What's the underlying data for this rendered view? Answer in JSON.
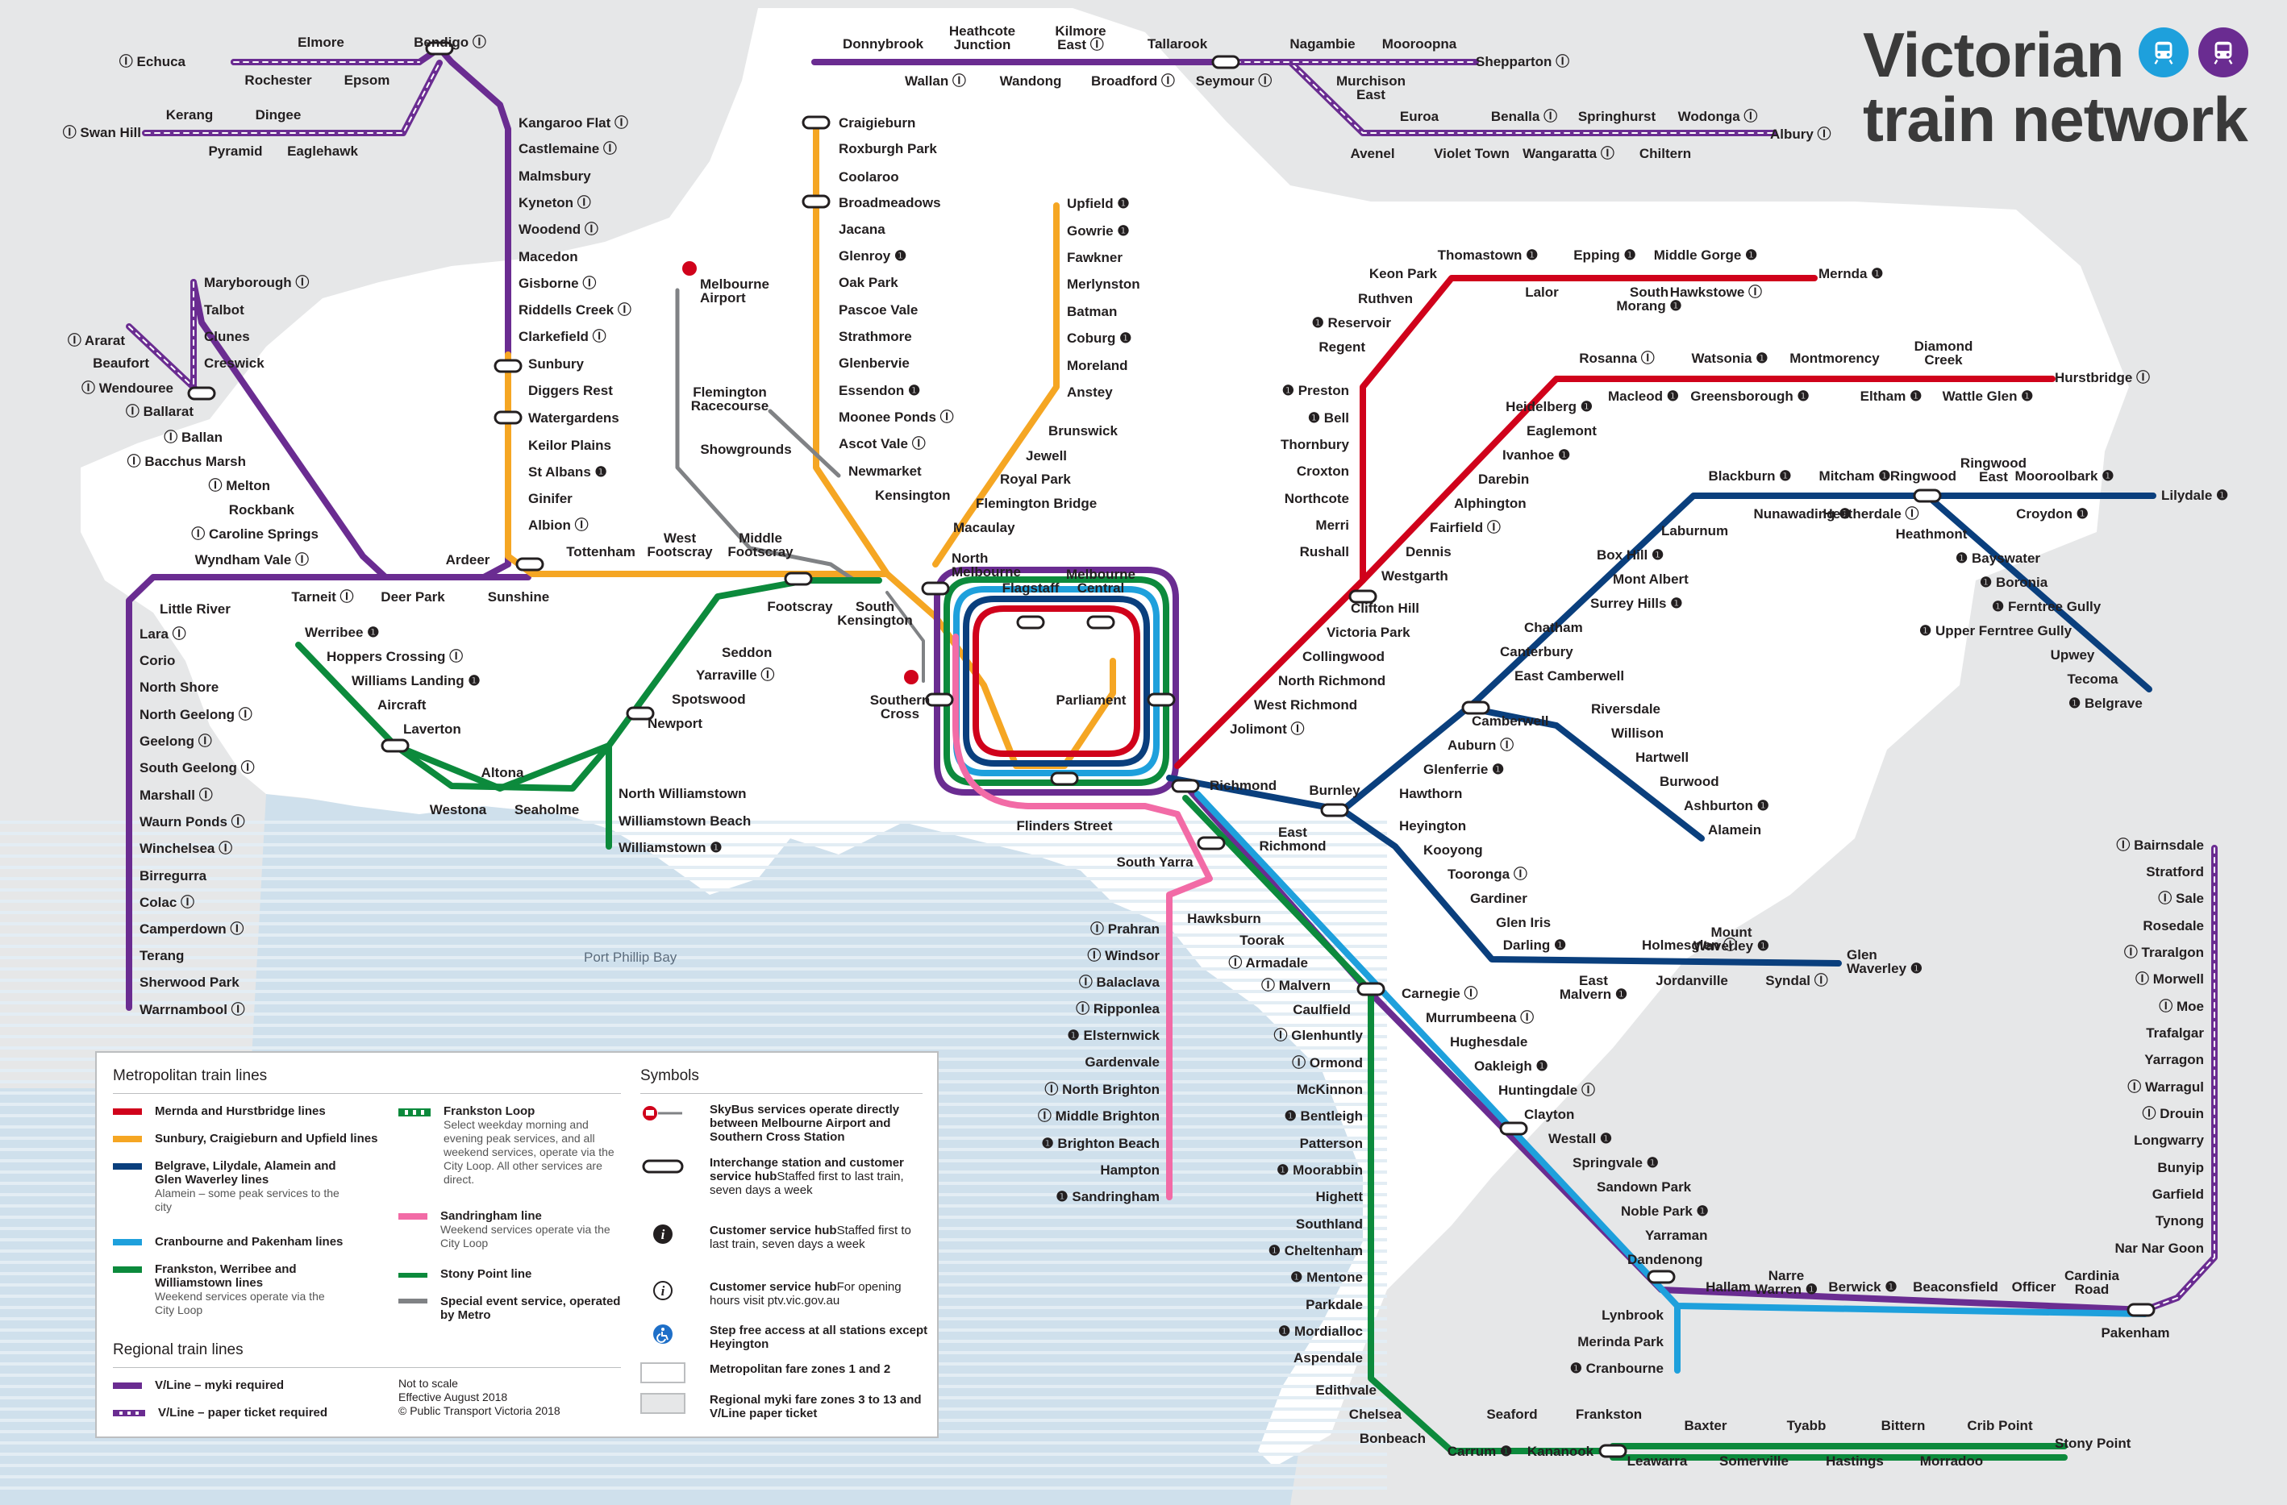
{
  "title": {
    "line1": "Victorian",
    "line2": "train network"
  },
  "title_icons": [
    "metro-train-icon",
    "vline-train-icon"
  ],
  "colors": {
    "red": "#d0021b",
    "yellow": "#f5a623",
    "blue": "#0a3f7d",
    "cyan": "#1ea0dc",
    "green": "#0c8a3c",
    "pink": "#f26ba6",
    "purple": "#6a2c91",
    "grey": "#808285",
    "zone12": "#ffffff",
    "zone3": "#e6e7e8",
    "water": "#cfe0ec"
  },
  "water_label": "Port Phillip Bay",
  "labels": {
    "Echuca": "Ⓘ Echuca",
    "Elmore": "Elmore",
    "Rochester": "Rochester",
    "Epsom": "Epsom",
    "Bendigo": "Bendigo Ⓘ",
    "SwanHill": "Ⓘ Swan Hill",
    "Kerang": "Kerang",
    "Dingee": "Dingee",
    "Pyramid": "Pyramid",
    "Eaglehawk": "Eaglehawk",
    "KangarooFlat": "Kangaroo Flat Ⓘ",
    "Castlemaine": "Castlemaine Ⓘ",
    "Malmsbury": "Malmsbury",
    "Kyneton": "Kyneton Ⓘ",
    "Woodend": "Woodend Ⓘ",
    "Macedon": "Macedon",
    "Gisborne": "Gisborne Ⓘ",
    "RiddellsCreek": "Riddells Creek Ⓘ",
    "Clarkefield": "Clarkefield Ⓘ",
    "Sunbury": "Sunbury",
    "DiggersRest": "Diggers Rest",
    "Watergardens": "Watergardens",
    "KeilorPlains": "Keilor Plains",
    "StAlbans": "St Albans ❶",
    "Ginifer": "Ginifer",
    "Albion": "Albion Ⓘ",
    "Maryborough": "Maryborough Ⓘ",
    "Talbot": "Talbot",
    "Clunes": "Clunes",
    "Creswick": "Creswick",
    "Ararat": "Ⓘ Ararat",
    "Beaufort": "Beaufort",
    "Wendouree": "Ⓘ Wendouree",
    "Ballarat": "Ⓘ Ballarat",
    "Ballan": "Ⓘ Ballan",
    "BacchusMarsh": "Ⓘ Bacchus Marsh",
    "Melton": "Ⓘ Melton",
    "Rockbank": "Rockbank",
    "CarolineSprings": "Ⓘ Caroline Springs",
    "WyndhamVale": "Wyndham Vale Ⓘ",
    "Ardeer": "Ardeer",
    "Tarneit": "Tarneit Ⓘ",
    "DeerPark": "Deer Park",
    "Sunshine": "Sunshine",
    "LittleRiver": "Little River",
    "Lara": "Lara Ⓘ",
    "Corio": "Corio",
    "NorthShore": "North Shore",
    "NorthGeelong": "North Geelong Ⓘ",
    "Geelong": "Geelong Ⓘ",
    "SouthGeelong": "South Geelong Ⓘ",
    "Marshall": "Marshall Ⓘ",
    "WaurnPonds": "Waurn Ponds Ⓘ",
    "Winchelsea": "Winchelsea Ⓘ",
    "Birregurra": "Birregurra",
    "Colac": "Colac Ⓘ",
    "Camperdown": "Camperdown Ⓘ",
    "Terang": "Terang",
    "SherwoodPark": "Sherwood Park",
    "Warrnambool": "Warrnambool Ⓘ",
    "Donnybrook": "Donnybrook",
    "HeathcoteJunction": "Heathcote|Junction",
    "KilmoreEast": "Kilmore|East Ⓘ",
    "Tallarook": "Tallarook",
    "Wallan": "Wallan Ⓘ",
    "Wandong": "Wandong",
    "Broadford": "Broadford Ⓘ",
    "Seymour": "Seymour Ⓘ",
    "Nagambie": "Nagambie",
    "Mooroopna": "Mooroopna",
    "Shepparton": "Shepparton Ⓘ",
    "MurchisonEast": "Murchison|East",
    "Euroa": "Euroa",
    "Benalla": "Benalla Ⓘ",
    "Springhurst": "Springhurst",
    "Wodonga": "Wodonga Ⓘ",
    "Albury": "Albury Ⓘ",
    "Avenel": "Avenel",
    "VioletTown": "Violet Town",
    "Wangaratta": "Wangaratta Ⓘ",
    "Chiltern": "Chiltern",
    "Craigieburn": "Craigieburn",
    "RoxburghPark": "Roxburgh Park",
    "Coolaroo": "Coolaroo",
    "Broadmeadows": "Broadmeadows",
    "Jacana": "Jacana",
    "Glenroy": "Glenroy ❶",
    "OakPark": "Oak Park",
    "PascoeVale": "Pascoe Vale",
    "Strathmore": "Strathmore",
    "Glenbervie": "Glenbervie",
    "Essendon": "Essendon ❶",
    "MooneePonds": "Moonee Ponds Ⓘ",
    "AscotVale": "Ascot Vale Ⓘ",
    "Newmarket": "Newmarket",
    "Kensington": "Kensington",
    "MelbourneAirport": "Melbourne|Airport",
    "FlemingtonRacecourse": "Flemington|Racecourse",
    "Showgrounds": "Showgrounds",
    "Upfield": "Upfield ❶",
    "Gowrie": "Gowrie ❶",
    "Fawkner": "Fawkner",
    "Merlynston": "Merlynston",
    "Batman": "Batman",
    "Coburg": "Coburg ❶",
    "Moreland": "Moreland",
    "Anstey": "Anstey",
    "Brunswick": "Brunswick",
    "Jewell": "Jewell",
    "RoyalPark": "Royal Park",
    "FlemingtonBridge": "Flemington Bridge",
    "Macaulay": "Macaulay",
    "NorthMelbourne": "North|Melbourne",
    "Flagstaff": "Flagstaff",
    "MelbourneCentral": "Melbourne|Central",
    "Parliament": "Parliament",
    "SouthernCross": "Southern|Cross",
    "FlindersStreet": "Flinders Street",
    "Tottenham": "Tottenham",
    "WestFootscray": "West|Footscray",
    "MiddleFootscray": "Middle|Footscray",
    "Footscray": "Footscray",
    "SouthKensington": "South|Kensington",
    "Werribee": "Werribee ❶",
    "HoppersCrossing": "Hoppers Crossing Ⓘ",
    "WilliamsLanding": "Williams Landing ❶",
    "Aircraft": "Aircraft",
    "Laverton": "Laverton",
    "Altona": "Altona",
    "Westona": "Westona",
    "Seaholme": "Seaholme",
    "Seddon": "Seddon",
    "Yarraville": "Yarraville Ⓘ",
    "Spotswood": "Spotswood",
    "Newport": "Newport",
    "NorthWilliamstown": "North Williamstown",
    "WilliamstownBeach": "Williamstown Beach",
    "Williamstown": "Williamstown ❶",
    "Thomastown": "Thomastown ❶",
    "Epping": "Epping ❶",
    "MiddleGorge": "Middle Gorge ❶",
    "Mernda": "Mernda ❶",
    "KeonPark": "Keon Park",
    "Ruthven": "Ruthven",
    "Lalor": "Lalor",
    "SouthMorang": "South|Morang ❶",
    "Hawkstowe": "Hawkstowe Ⓘ",
    "Reservoir": "❶ Reservoir",
    "Regent": "Regent",
    "Preston": "❶ Preston",
    "Bell": "❶ Bell",
    "Thornbury": "Thornbury",
    "Croxton": "Croxton",
    "Northcote": "Northcote",
    "Merri": "Merri",
    "Rushall": "Rushall",
    "Rosanna": "Rosanna Ⓘ",
    "Watsonia": "Watsonia ❶",
    "Montmorency": "Montmorency",
    "DiamondCreek": "Diamond|Creek",
    "Hurstbridge": "Hurstbridge Ⓘ",
    "Heidelberg": "Heidelberg ❶",
    "Macleod": "Macleod ❶",
    "Greensborough": "Greensborough ❶",
    "Eltham": "Eltham ❶",
    "WattleGlen": "Wattle Glen ❶",
    "Eaglemont": "Eaglemont",
    "Ivanhoe": "Ivanhoe ❶",
    "Darebin": "Darebin",
    "Alphington": "Alphington",
    "Fairfield": "Fairfield Ⓘ",
    "Dennis": "Dennis",
    "Westgarth": "Westgarth",
    "CliftonHill": "Clifton Hill",
    "VictoriaPark": "Victoria Park",
    "Collingwood": "Collingwood",
    "NorthRichmond": "North Richmond",
    "WestRichmond": "West Richmond",
    "Jolimont": "Jolimont Ⓘ",
    "Blackburn": "Blackburn ❶",
    "Mitcham": "Mitcham ❶",
    "Ringwood": "Ringwood",
    "RingwoodEast": "Ringwood|East",
    "Mooroolbark": "Mooroolbark ❶",
    "Lilydale": "Lilydale ❶",
    "Laburnum": "Laburnum",
    "Nunawading": "Nunawading ❶",
    "Heatherdale": "Heatherdale Ⓘ",
    "Croydon": "Croydon ❶",
    "BoxHill": "Box Hill ❶",
    "MontAlbert": "Mont Albert",
    "SurreyHills": "Surrey Hills ❶",
    "Chatham": "Chatham",
    "Canterbury": "Canterbury",
    "EastCamberwell": "East Camberwell",
    "Heathmont": "Heathmont",
    "Bayswater": "❶ Bayswater",
    "Boronia": "❶ Boronia",
    "FerntreeGully": "❶ Ferntree Gully",
    "UpperFerntreeGully": "❶ Upper Ferntree Gully",
    "Upwey": "Upwey",
    "Tecoma": "Tecoma",
    "Belgrave": "❶ Belgrave",
    "Camberwell": "Camberwell",
    "Auburn": "Auburn Ⓘ",
    "Glenferrie": "Glenferrie ❶",
    "Hawthorn": "Hawthorn",
    "Riversdale": "Riversdale",
    "Willison": "Willison",
    "Hartwell": "Hartwell",
    "Burwood": "Burwood",
    "Ashburton": "Ashburton ❶",
    "Alamein": "Alamein",
    "Richmond": "Richmond",
    "Burnley": "Burnley",
    "EastRichmond": "East|Richmond",
    "Heyington": "Heyington",
    "Kooyong": "Kooyong",
    "Tooronga": "Tooronga Ⓘ",
    "Gardiner": "Gardiner",
    "GlenIris": "Glen Iris",
    "Darling": "Darling ❶",
    "Holmesglen": "Holmesglen Ⓘ",
    "MountWaverley": "Mount|Waverley ❶",
    "GlenWaverley": "Glen|Waverley ❶",
    "EastMalvern": "East|Malvern ❶",
    "Jordanville": "Jordanville",
    "Syndal": "Syndal Ⓘ",
    "SouthYarra": "South Yarra",
    "Prahran": "Ⓘ Prahran",
    "Windsor": "Ⓘ Windsor",
    "Balaclava": "Ⓘ Balaclava",
    "Ripponlea": "Ⓘ Ripponlea",
    "Elsternwick": "❶ Elsternwick",
    "Gardenvale": "Gardenvale",
    "NorthBrighton": "Ⓘ North Brighton",
    "MiddleBrighton": "Ⓘ Middle Brighton",
    "BrightonBeach": "❶ Brighton Beach",
    "Hampton": "Hampton",
    "Sandringham": "❶ Sandringham",
    "Hawksburn": "Hawksburn",
    "Toorak": "Toorak",
    "Armadale": "Ⓘ Armadale",
    "Malvern": "Ⓘ Malvern",
    "Caulfield": "Caulfield",
    "Glenhuntly": "Ⓘ Glenhuntly",
    "Ormond": "Ⓘ Ormond",
    "McKinnon": "McKinnon",
    "Bentleigh": "❶ Bentleigh",
    "Patterson": "Patterson",
    "Moorabbin": "❶ Moorabbin",
    "Highett": "Highett",
    "Southland": "Southland",
    "Cheltenham": "❶ Cheltenham",
    "Mentone": "❶ Mentone",
    "Parkdale": "Parkdale",
    "Mordialloc": "❶ Mordialloc",
    "Aspendale": "Aspendale",
    "Edithvale": "Edithvale",
    "Chelsea": "Chelsea",
    "Bonbeach": "Bonbeach",
    "Carrum": "Carrum ❶",
    "Seaford": "Seaford",
    "Kananook": "Kananook",
    "Frankston": "Frankston",
    "Leawarra": "Leawarra",
    "Baxter": "Baxter",
    "Somerville": "Somerville",
    "Tyabb": "Tyabb",
    "Hastings": "Hastings",
    "Bittern": "Bittern",
    "Morradoo": "Morradoo",
    "CribPoint": "Crib Point",
    "StonyPoint": "Stony Point",
    "Carnegie": "Carnegie Ⓘ",
    "Murrumbeena": "Murrumbeena Ⓘ",
    "Hughesdale": "Hughesdale",
    "Oakleigh": "Oakleigh ❶",
    "Huntingdale": "Huntingdale Ⓘ",
    "Clayton": "Clayton",
    "Westall": "Westall ❶",
    "Springvale": "Springvale ❶",
    "SandownPark": "Sandown Park",
    "NoblePark": "Noble Park ❶",
    "Yarraman": "Yarraman",
    "Dandenong": "Dandenong",
    "Hallam": "Hallam",
    "NarreWarren": "Narre|Warren ❶",
    "Berwick": "Berwick ❶",
    "Beaconsfield": "Beaconsfield",
    "Officer": "Officer",
    "CardiniaRoad": "Cardinia|Road",
    "Pakenham": "Pakenham",
    "Lynbrook": "Lynbrook",
    "MerindaPark": "Merinda Park",
    "Cranbourne": "❶ Cranbourne",
    "Bairnsdale": "Ⓘ Bairnsdale",
    "Stratford": "Stratford",
    "Sale": "Ⓘ Sale",
    "Rosedale": "Rosedale",
    "Traralgon": "Ⓘ Traralgon",
    "Morwell": "Ⓘ Morwell",
    "Moe": "Ⓘ Moe",
    "Trafalgar": "Trafalgar",
    "Yarragon": "Yarragon",
    "Warragul": "Ⓘ Warragul",
    "Drouin": "Ⓘ Drouin",
    "Longwarry": "Longwarry",
    "Bunyip": "Bunyip",
    "Garfield": "Garfield",
    "Tynong": "Tynong",
    "NarNarGoon": "Nar Nar Goon"
  },
  "legend": {
    "metro_heading": "Metropolitan train lines",
    "regional_heading": "Regional train lines",
    "symbols_heading": "Symbols",
    "metro_items": [
      {
        "label": "Mernda and Hurstbridge lines",
        "sub": "",
        "color": "#d0021b"
      },
      {
        "label": "Sunbury, Craigieburn and Upfield lines",
        "sub": "",
        "color": "#f5a623"
      },
      {
        "label": "Belgrave, Lilydale, Alamein and Glen Waverley lines",
        "sub": "Alamein – some peak services to the city",
        "color": "#0a3f7d"
      },
      {
        "label": "Cranbourne and Pakenham lines",
        "sub": "",
        "color": "#1ea0dc"
      },
      {
        "label": "Frankston, Werribee and Williamstown lines",
        "sub": "Weekend services operate via the City Loop",
        "color": "#0c8a3c"
      }
    ],
    "metro_items_col2": [
      {
        "label": "Frankston Loop",
        "sub": "Select weekday morning and evening peak services, and all weekend services, operate via the City Loop. All other services are direct.",
        "color": "#0c8a3c"
      },
      {
        "label": "Sandringham line",
        "sub": "Weekend services operate via the City Loop",
        "color": "#f26ba6"
      },
      {
        "label": "Stony Point line",
        "sub": "",
        "color": "#0c8a3c"
      },
      {
        "label": "Special event service, operated by Metro",
        "sub": "",
        "color": "#808285"
      }
    ],
    "regional_items": [
      {
        "label": "V/Line – myki required"
      },
      {
        "label": "V/Line – paper ticket required"
      }
    ],
    "notes": [
      "Not to scale",
      "Effective August 2018",
      "© Public Transport Victoria 2018"
    ],
    "symbols": [
      {
        "icon": "skybus-icon",
        "label": "SkyBus services operate directly between Melbourne Airport and Southern Cross Station",
        "sub": ""
      },
      {
        "icon": "interchange-icon",
        "label": "Interchange station and customer service hub",
        "sub": "Staffed first to last train, seven days a week"
      },
      {
        "icon": "info-filled-icon",
        "label": "Customer service hub",
        "sub": "Staffed first to last train, seven days a week"
      },
      {
        "icon": "info-outline-icon",
        "label": "Customer service hub",
        "sub": "For opening hours visit ptv.vic.gov.au"
      },
      {
        "icon": "accessible-icon",
        "label": "Step free access at all stations except Heyington",
        "sub": ""
      },
      {
        "icon": "zone-1-2-icon",
        "label": "Metropolitan fare zones 1 and 2",
        "sub": ""
      },
      {
        "icon": "zone-3-icon",
        "label": "Regional myki fare zones 3 to 13 and V/Line paper ticket",
        "sub": ""
      }
    ]
  }
}
